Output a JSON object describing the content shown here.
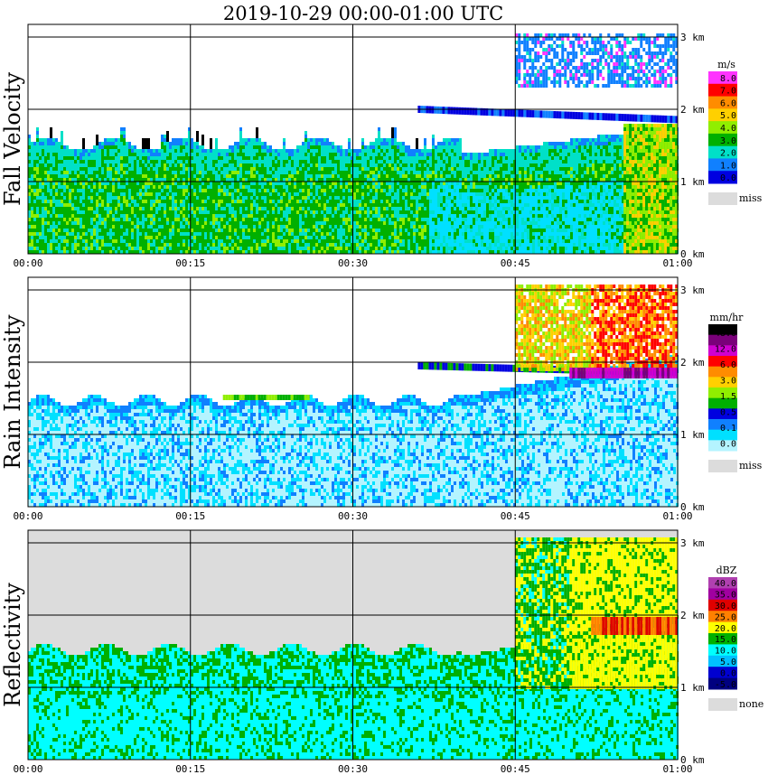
{
  "title": "2019-10-29   00:00-01:00 UTC",
  "chart_data": [
    {
      "type": "heatmap",
      "title": "Fall Velocity",
      "x_ticks": [
        "00:00",
        "00:15",
        "00:30",
        "00:45",
        "01:00"
      ],
      "y_ticks": [
        "0 km",
        "1 km",
        "2 km",
        "3 km"
      ],
      "ylim_km": [
        0,
        3.2
      ],
      "xlim_min": [
        0,
        60
      ],
      "grid": true,
      "colorbar": {
        "unit": "m/s",
        "labels": [
          "8.0",
          "7.0",
          "6.0",
          "5.0",
          "4.0",
          "3.0",
          "2.0",
          "1.0",
          "0.0"
        ],
        "colors": [
          "#ff33ff",
          "#ff0000",
          "#ff8c00",
          "#ffd000",
          "#90ee00",
          "#00b000",
          "#00e0c8",
          "#1080ff",
          "#0000e0"
        ],
        "missing_label": "miss",
        "missing_color": "#dcdcdc"
      }
    },
    {
      "type": "heatmap",
      "title": "Rain Intensity",
      "x_ticks": [
        "00:00",
        "00:15",
        "00:30",
        "00:45",
        "01:00"
      ],
      "y_ticks": [
        "0 km",
        "1 km",
        "2 km",
        "3 km"
      ],
      "ylim_km": [
        0,
        3.2
      ],
      "xlim_min": [
        0,
        60
      ],
      "grid": true,
      "colorbar": {
        "unit": "mm/hr",
        "labels": [
          "48.0",
          "12.0",
          "6.0",
          "3.0",
          "1.5",
          "0.5",
          "0.1",
          "0.0"
        ],
        "colors": [
          "#000000",
          "#7a007a",
          "#d000d0",
          "#ff0000",
          "#ff8c00",
          "#ffd000",
          "#90ee00",
          "#00b000",
          "#0000e0",
          "#1080ff",
          "#00e0ff",
          "#b4f4ff"
        ],
        "missing_label": "miss",
        "missing_color": "#dcdcdc"
      }
    },
    {
      "type": "heatmap",
      "title": "Reflectivity",
      "x_ticks": [
        "00:00",
        "00:15",
        "00:30",
        "00:45",
        "01:00"
      ],
      "y_ticks": [
        "0 km",
        "1 km",
        "2 km",
        "3 km"
      ],
      "ylim_km": [
        0,
        3.2
      ],
      "xlim_min": [
        0,
        60
      ],
      "grid": true,
      "colorbar": {
        "unit": "dBZ",
        "labels": [
          "40.0",
          "35.0",
          "30.0",
          "25.0",
          "20.0",
          "15.0",
          "10.0",
          "5.0",
          "0.0",
          "-5.0"
        ],
        "colors": [
          "#b040b0",
          "#a000a0",
          "#e00000",
          "#ff8000",
          "#ffff00",
          "#00b000",
          "#00ffff",
          "#00c0ff",
          "#0000d0",
          "#000080"
        ],
        "missing_label": "none",
        "missing_color": "#dcdcdc"
      }
    }
  ]
}
